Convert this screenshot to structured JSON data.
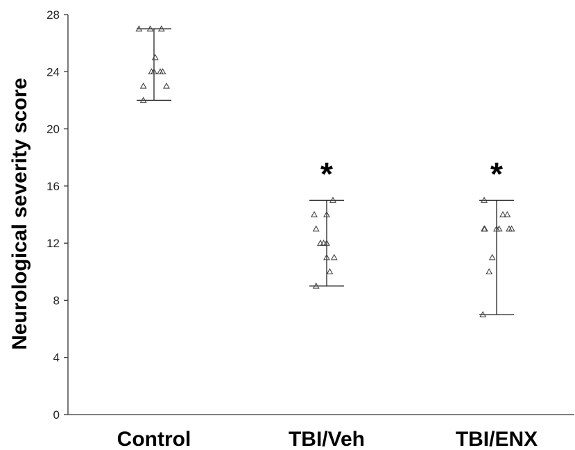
{
  "chart_data": {
    "type": "scatter",
    "title": "",
    "xlabel": "",
    "ylabel": "Neurological severity score",
    "ylim": [
      0,
      28
    ],
    "yticks": [
      0,
      4,
      8,
      12,
      16,
      20,
      24,
      28
    ],
    "categories": [
      "Control",
      "TBI/Veh",
      "TBI/ENX"
    ],
    "groups": [
      {
        "category": "Control",
        "significance": "",
        "range": [
          22,
          27
        ],
        "points": [
          {
            "dx": -0.24,
            "y": 27
          },
          {
            "dx": -0.06,
            "y": 27
          },
          {
            "dx": 0.12,
            "y": 27
          },
          {
            "dx": 0.02,
            "y": 25
          },
          {
            "dx": -0.04,
            "y": 24
          },
          {
            "dx": 0.0,
            "y": 24
          },
          {
            "dx": 0.1,
            "y": 24
          },
          {
            "dx": 0.14,
            "y": 24
          },
          {
            "dx": -0.17,
            "y": 23
          },
          {
            "dx": 0.2,
            "y": 23
          },
          {
            "dx": -0.17,
            "y": 22
          }
        ]
      },
      {
        "category": "TBI/Veh",
        "significance": "*",
        "range": [
          9,
          15
        ],
        "points": [
          {
            "dx": 0.1,
            "y": 15
          },
          {
            "dx": -0.2,
            "y": 14
          },
          {
            "dx": 0.0,
            "y": 14
          },
          {
            "dx": -0.17,
            "y": 13
          },
          {
            "dx": -0.1,
            "y": 12
          },
          {
            "dx": -0.05,
            "y": 12
          },
          {
            "dx": 0.0,
            "y": 12
          },
          {
            "dx": 0.0,
            "y": 11
          },
          {
            "dx": 0.12,
            "y": 11
          },
          {
            "dx": 0.05,
            "y": 10
          },
          {
            "dx": -0.17,
            "y": 9
          }
        ]
      },
      {
        "category": "TBI/ENX",
        "significance": "*",
        "range": [
          7,
          15
        ],
        "points": [
          {
            "dx": -0.2,
            "y": 15
          },
          {
            "dx": 0.1,
            "y": 14
          },
          {
            "dx": 0.17,
            "y": 14
          },
          {
            "dx": -0.2,
            "y": 13
          },
          {
            "dx": -0.19,
            "y": 13
          },
          {
            "dx": 0.0,
            "y": 13
          },
          {
            "dx": 0.04,
            "y": 13
          },
          {
            "dx": 0.2,
            "y": 13
          },
          {
            "dx": 0.24,
            "y": 13
          },
          {
            "dx": -0.07,
            "y": 11
          },
          {
            "dx": -0.12,
            "y": 10
          },
          {
            "dx": -0.22,
            "y": 7
          }
        ]
      }
    ],
    "grid": false,
    "legend": "none"
  }
}
